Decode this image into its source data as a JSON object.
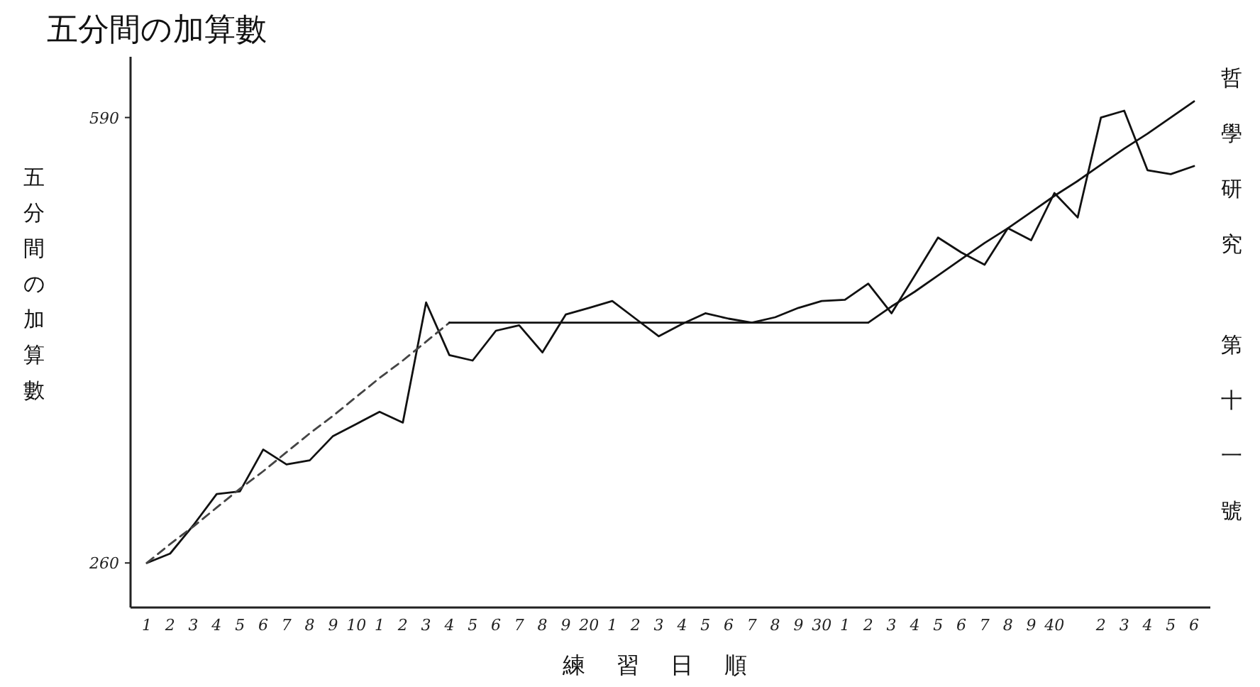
{
  "chart_data": {
    "type": "line",
    "title": "五分間の加算數",
    "xlabel": "練習日順",
    "ylabel": "五分間の加算數",
    "annotations": [
      "哲學研究",
      "第十一號"
    ],
    "categories": [
      "1",
      "2",
      "3",
      "4",
      "5",
      "6",
      "7",
      "8",
      "9",
      "10",
      "1",
      "2",
      "3",
      "4",
      "5",
      "6",
      "7",
      "8",
      "9",
      "20",
      "1",
      "2",
      "3",
      "4",
      "5",
      "6",
      "7",
      "8",
      "9",
      "30",
      "1",
      "2",
      "3",
      "4",
      "5",
      "6",
      "7",
      "8",
      "9",
      "40",
      null,
      "2",
      "3",
      "4",
      "5",
      "6"
    ],
    "ylim": [
      227,
      635
    ],
    "yticks": [
      260,
      590
    ],
    "series": [
      {
        "color": "#111111",
        "values": [
          260,
          267,
          288,
          311,
          313,
          344,
          333,
          336,
          354,
          363,
          372,
          364,
          453,
          414,
          410,
          432,
          436,
          416,
          444,
          449,
          454,
          441,
          428,
          437,
          445,
          441,
          438,
          442,
          449,
          454,
          455,
          467,
          445,
          473,
          501,
          490,
          481,
          508,
          499,
          534,
          516,
          590,
          595,
          551,
          548,
          554
        ]
      },
      {
        "color": "#444444",
        "line_style": "dashed",
        "values": [
          260,
          274,
          287,
          301,
          315,
          328,
          342,
          356,
          369,
          383,
          397,
          410,
          424,
          438,
          null,
          null,
          null,
          null,
          null,
          null,
          null,
          null,
          null,
          null,
          null,
          null,
          null,
          null,
          null,
          null,
          null,
          null,
          null,
          null,
          null,
          null,
          null,
          null,
          null,
          null,
          null,
          null,
          null,
          null,
          null,
          null
        ]
      },
      {
        "color": "#111111",
        "values": [
          null,
          null,
          null,
          null,
          null,
          null,
          null,
          null,
          null,
          null,
          null,
          null,
          null,
          438,
          438,
          438,
          438,
          438,
          438,
          438,
          438,
          438,
          438,
          438,
          438,
          438,
          438,
          438,
          438,
          438,
          438,
          438,
          null,
          null,
          null,
          null,
          null,
          null,
          null,
          null,
          null,
          null,
          null,
          null,
          null,
          null
        ]
      },
      {
        "color": "#111111",
        "values": [
          null,
          null,
          null,
          null,
          null,
          null,
          null,
          null,
          null,
          null,
          null,
          null,
          null,
          null,
          null,
          null,
          null,
          null,
          null,
          null,
          null,
          null,
          null,
          null,
          null,
          null,
          null,
          null,
          null,
          null,
          null,
          438,
          450,
          461,
          473,
          485,
          497,
          508,
          520,
          532,
          543,
          555,
          567,
          578,
          590,
          602
        ]
      }
    ],
    "marker": "none"
  }
}
